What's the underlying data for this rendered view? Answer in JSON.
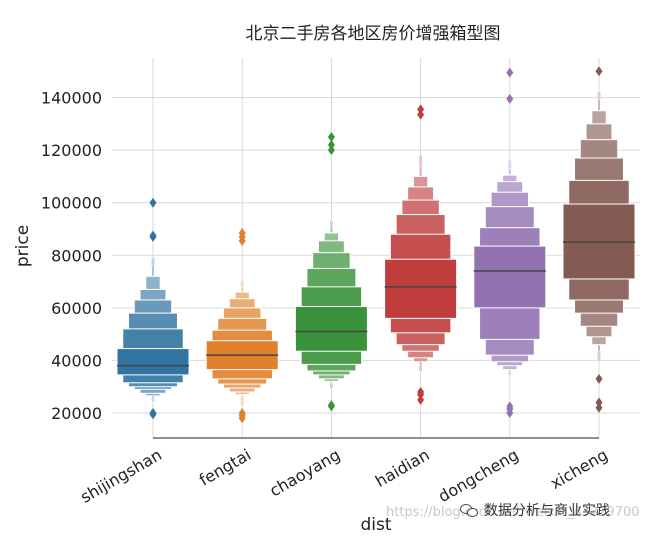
{
  "chart_data": {
    "type": "boxen",
    "title": "北京二手房各地区房价增强箱型图",
    "xlabel": "dist",
    "ylabel": "price",
    "ylim": [
      10000,
      157000
    ],
    "yticks": [
      20000,
      40000,
      60000,
      80000,
      100000,
      120000,
      140000
    ],
    "grid": true,
    "categories": [
      "shijingshan",
      "fengtai",
      "chaoyang",
      "haidian",
      "dongcheng",
      "xicheng"
    ],
    "colors": [
      "#3274a1",
      "#e1812c",
      "#3a923a",
      "#c03d3e",
      "#9372b2",
      "#845b53"
    ],
    "series": [
      {
        "median": 38000,
        "levels": [
          [
            34500,
            44500
          ],
          [
            31500,
            52000
          ],
          [
            30000,
            58000
          ],
          [
            29000,
            63000
          ],
          [
            27500,
            67000
          ],
          [
            26500,
            72000
          ],
          [
            25500,
            76000
          ]
        ],
        "whisker_low": 24500,
        "whisker_high": 79000,
        "outliers": [
          19500,
          20000,
          87000,
          87500,
          100000
        ]
      },
      {
        "median": 42000,
        "levels": [
          [
            36500,
            47500
          ],
          [
            33000,
            51500
          ],
          [
            31000,
            56000
          ],
          [
            29500,
            60000
          ],
          [
            28000,
            63500
          ],
          [
            27000,
            66000
          ],
          [
            26000,
            68000
          ]
        ],
        "whisker_low": 23000,
        "whisker_high": 70000,
        "outliers": [
          18000,
          19000,
          20000,
          85500,
          87000,
          88500
        ]
      },
      {
        "median": 51000,
        "levels": [
          [
            43500,
            60500
          ],
          [
            38500,
            68000
          ],
          [
            36000,
            75000
          ],
          [
            34500,
            81000
          ],
          [
            33000,
            85500
          ],
          [
            32000,
            88500
          ],
          [
            31000,
            91500
          ]
        ],
        "whisker_low": 29500,
        "whisker_high": 93000,
        "outliers": [
          22500,
          23000,
          120000,
          122000,
          125000
        ]
      },
      {
        "median": 68000,
        "levels": [
          [
            56000,
            78500
          ],
          [
            50500,
            88000
          ],
          [
            46000,
            95500
          ],
          [
            43500,
            101000
          ],
          [
            41000,
            106000
          ],
          [
            39500,
            110000
          ],
          [
            38000,
            114000
          ]
        ],
        "whisker_low": 36000,
        "whisker_high": 118000,
        "outliers": [
          25000,
          27000,
          28000,
          133500,
          135500
        ]
      },
      {
        "median": 74000,
        "levels": [
          [
            60000,
            83500
          ],
          [
            48000,
            90500
          ],
          [
            42000,
            98500
          ],
          [
            39500,
            104000
          ],
          [
            38000,
            108000
          ],
          [
            36500,
            110500
          ],
          [
            35500,
            113000
          ]
        ],
        "whisker_low": 34500,
        "whisker_high": 116000,
        "outliers": [
          20000,
          21500,
          22500,
          139500,
          149500
        ]
      },
      {
        "median": 85000,
        "levels": [
          [
            71000,
            99500
          ],
          [
            63000,
            108500
          ],
          [
            58000,
            117000
          ],
          [
            53000,
            124000
          ],
          [
            49000,
            130000
          ],
          [
            46000,
            135000
          ],
          [
            43500,
            139500
          ]
        ],
        "whisker_low": 40000,
        "whisker_high": 142000,
        "outliers": [
          22000,
          24000,
          33000,
          150000
        ]
      }
    ]
  },
  "watermark": "https://blog.csdn.net/weixin_43329700",
  "brand": "数据分析与商业实践"
}
